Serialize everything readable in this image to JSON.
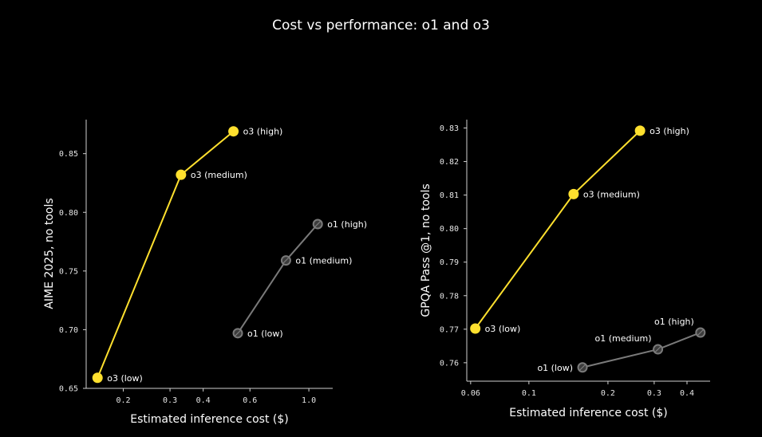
{
  "title": "Cost vs performance: o1 and o3",
  "colors": {
    "o3": "#FFE02E",
    "o1": "#7a7a7a",
    "o1_fill": "#3c3c3c",
    "axis": "#cfcfcf"
  },
  "chart_data": [
    {
      "type": "scatter",
      "xlabel": "Estimated inference cost ($)",
      "ylabel": "AIME 2025, no tools",
      "x_scale": "log",
      "xlim": [
        0.145,
        1.23
      ],
      "ylim": [
        0.65,
        0.879
      ],
      "x_ticks": [
        {
          "value": 0.2,
          "label": "0.2"
        },
        {
          "value": 0.3,
          "label": "0.3"
        },
        {
          "value": 0.4,
          "label": "0.4"
        },
        {
          "value": 0.6,
          "label": "0.6"
        },
        {
          "value": 1.0,
          "label": "1.0"
        }
      ],
      "y_ticks": [
        {
          "value": 0.65,
          "label": "0.65"
        },
        {
          "value": 0.7,
          "label": "0.70"
        },
        {
          "value": 0.75,
          "label": "0.75"
        },
        {
          "value": 0.8,
          "label": "0.80"
        },
        {
          "value": 0.85,
          "label": "0.85"
        }
      ],
      "series": [
        {
          "name": "o3",
          "points": [
            {
              "x": 0.16,
              "y": 0.659,
              "label": "o3 (low)",
              "pos": "right"
            },
            {
              "x": 0.33,
              "y": 0.832,
              "label": "o3 (medium)",
              "pos": "right"
            },
            {
              "x": 0.52,
              "y": 0.869,
              "label": "o3 (high)",
              "pos": "right"
            }
          ]
        },
        {
          "name": "o1",
          "points": [
            {
              "x": 0.54,
              "y": 0.697,
              "label": "o1 (low)",
              "pos": "right"
            },
            {
              "x": 0.82,
              "y": 0.759,
              "label": "o1 (medium)",
              "pos": "right"
            },
            {
              "x": 1.08,
              "y": 0.79,
              "label": "o1 (high)",
              "pos": "right"
            }
          ]
        }
      ]
    },
    {
      "type": "scatter",
      "xlabel": "Estimated inference cost ($)",
      "ylabel": "GPQA Pass @1, no tools",
      "x_scale": "log",
      "xlim": [
        0.058,
        0.49
      ],
      "ylim": [
        0.7545,
        0.8325
      ],
      "x_ticks": [
        {
          "value": 0.06,
          "label": "0.06"
        },
        {
          "value": 0.1,
          "label": "0.1"
        },
        {
          "value": 0.2,
          "label": "0.2"
        },
        {
          "value": 0.3,
          "label": "0.3"
        },
        {
          "value": 0.4,
          "label": "0.4"
        }
      ],
      "y_ticks": [
        {
          "value": 0.76,
          "label": "0.76"
        },
        {
          "value": 0.77,
          "label": "0.77"
        },
        {
          "value": 0.78,
          "label": "0.78"
        },
        {
          "value": 0.79,
          "label": "0.79"
        },
        {
          "value": 0.8,
          "label": "0.80"
        },
        {
          "value": 0.81,
          "label": "0.81"
        },
        {
          "value": 0.82,
          "label": "0.82"
        },
        {
          "value": 0.83,
          "label": "0.83"
        }
      ],
      "series": [
        {
          "name": "o3",
          "points": [
            {
              "x": 0.0625,
              "y": 0.7702,
              "label": "o3 (low)",
              "pos": "right"
            },
            {
              "x": 0.148,
              "y": 0.8103,
              "label": "o3 (medium)",
              "pos": "right"
            },
            {
              "x": 0.265,
              "y": 0.8292,
              "label": "o3 (high)",
              "pos": "right"
            }
          ]
        },
        {
          "name": "o1",
          "points": [
            {
              "x": 0.16,
              "y": 0.7586,
              "label": "o1 (low)",
              "pos": "left"
            },
            {
              "x": 0.31,
              "y": 0.764,
              "label": "o1 (medium)",
              "pos": "above-left"
            },
            {
              "x": 0.45,
              "y": 0.769,
              "label": "o1 (high)",
              "pos": "above-left"
            }
          ]
        }
      ]
    }
  ]
}
